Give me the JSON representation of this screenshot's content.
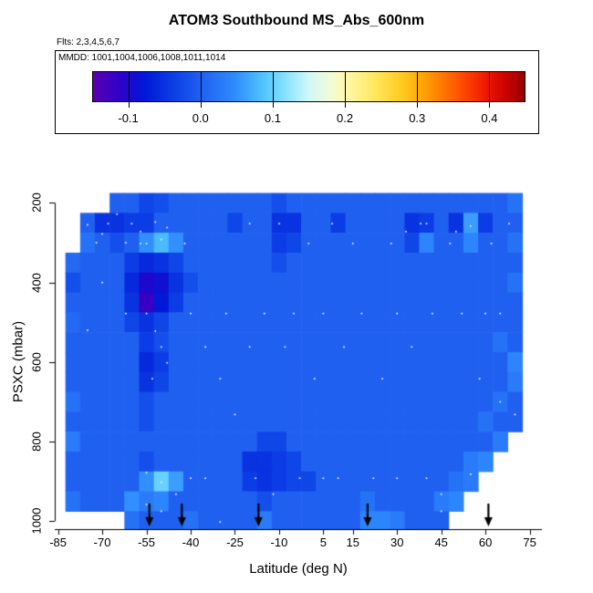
{
  "title": "ATOM3 Southbound MS_Abs_600nm",
  "subtitle_flights": "Flts: 2,3,4,5,6,7",
  "legend": {
    "mmdd_label": "MMDD: 1001,1004,1006,1008,1011,1014",
    "colorbar": {
      "min": -0.15,
      "max": 0.45,
      "tick_values": [
        -0.1,
        0.0,
        0.1,
        0.2,
        0.3,
        0.4
      ],
      "tick_labels": [
        "-0.1",
        "0.0",
        "0.1",
        "0.2",
        "0.3",
        "0.4"
      ],
      "stops": [
        [
          0.0,
          "#5a00b0"
        ],
        [
          0.06,
          "#3000c8"
        ],
        [
          0.12,
          "#0018d8"
        ],
        [
          0.2,
          "#0f46e8"
        ],
        [
          0.25,
          "#2060f0"
        ],
        [
          0.33,
          "#2f8cff"
        ],
        [
          0.4,
          "#55c8ff"
        ],
        [
          0.46,
          "#9ae8ff"
        ],
        [
          0.5,
          "#d0f8f8"
        ],
        [
          0.55,
          "#f0fcd8"
        ],
        [
          0.583,
          "#fff8b0"
        ],
        [
          0.65,
          "#ffe960"
        ],
        [
          0.72,
          "#ffc81e"
        ],
        [
          0.78,
          "#ff9600"
        ],
        [
          0.85,
          "#ff5000"
        ],
        [
          0.91,
          "#f01800"
        ],
        [
          0.96,
          "#c80000"
        ],
        [
          1.0,
          "#960000"
        ]
      ]
    }
  },
  "axes": {
    "x": {
      "label": "Latitude (deg N)",
      "tick_values": [
        -85,
        -70,
        -55,
        -40,
        -25,
        -10,
        5,
        15,
        30,
        45,
        60,
        75
      ],
      "tick_labels": [
        "-85",
        "-70",
        "-55",
        "-40",
        "-25",
        "-10",
        "5",
        "15",
        "30",
        "45",
        "60",
        "75"
      ]
    },
    "y": {
      "label": "PSXC (mbar)",
      "tick_values": [
        200,
        400,
        600,
        800,
        1000
      ],
      "tick_labels": [
        "200",
        "400",
        "600",
        "800",
        "1000"
      ]
    }
  },
  "colors": {
    "background": "#ffffff",
    "axis": "#000000",
    "arrow": "#000000",
    "track_dot": "#ffffff"
  },
  "chart_data": {
    "type": "heatmap",
    "title": "ATOM3 Southbound MS_Abs_600nm",
    "xlabel": "Latitude (deg N)",
    "ylabel": "PSXC (mbar)",
    "x_range": [
      -85,
      80
    ],
    "y_range": [
      1000,
      200
    ],
    "value_range": [
      -0.15,
      0.45
    ],
    "lat_centers": [
      -80,
      -75,
      -70,
      -65,
      -60,
      -55,
      -50,
      -45,
      -40,
      -35,
      -30,
      -25,
      -20,
      -15,
      -10,
      -5,
      0,
      5,
      10,
      15,
      20,
      25,
      30,
      35,
      40,
      45,
      50,
      55,
      60,
      65,
      70,
      75
    ],
    "pressure_centers": [
      200,
      250,
      300,
      350,
      400,
      450,
      500,
      550,
      600,
      650,
      700,
      750,
      800,
      850,
      900,
      950,
      1000
    ],
    "values": [
      [
        null,
        null,
        null,
        0,
        0,
        -0.03,
        -0.02,
        0,
        0,
        0,
        0,
        0,
        0,
        0,
        -0.02,
        0,
        0,
        0,
        0,
        0,
        0,
        0,
        0,
        0,
        0,
        0,
        0,
        0,
        0,
        0,
        0.02,
        null
      ],
      [
        null,
        0,
        -0.05,
        -0.05,
        -0.04,
        -0.04,
        0,
        0,
        0,
        0,
        0,
        -0.03,
        0,
        0,
        -0.05,
        -0.05,
        0,
        0,
        -0.04,
        0,
        0,
        0,
        0,
        -0.05,
        -0.04,
        0,
        -0.05,
        0.06,
        -0.04,
        0,
        0,
        null
      ],
      [
        null,
        0.02,
        0,
        -0.02,
        0,
        0.05,
        0.08,
        0.05,
        0,
        0,
        0,
        0,
        0,
        0,
        -0.04,
        -0.03,
        0,
        0,
        0,
        0,
        0,
        0,
        0,
        -0.03,
        0.04,
        0,
        0,
        0.04,
        0,
        0,
        0.02,
        null
      ],
      [
        0.01,
        0,
        0,
        0,
        -0.04,
        -0.06,
        -0.05,
        -0.03,
        0,
        0,
        0,
        0,
        0,
        0,
        -0.02,
        0,
        0,
        0,
        0,
        0,
        0,
        0,
        0,
        0,
        0,
        0,
        0,
        0,
        0,
        0,
        0,
        null
      ],
      [
        -0.02,
        0,
        0,
        0,
        -0.06,
        -0.1,
        -0.09,
        -0.05,
        -0.02,
        0,
        0,
        0,
        0,
        0,
        0,
        0,
        0,
        0,
        0,
        0,
        0,
        0,
        0,
        0,
        0,
        0,
        0,
        0,
        0,
        0,
        0.02,
        null
      ],
      [
        0,
        0,
        0,
        0,
        -0.05,
        -0.12,
        -0.08,
        -0.04,
        0,
        0,
        0,
        0,
        0,
        0,
        0,
        0,
        0,
        0,
        0,
        0,
        0,
        0,
        0,
        0,
        0,
        0,
        0,
        0,
        0,
        0,
        0,
        null
      ],
      [
        0.01,
        0,
        0,
        0,
        -0.03,
        -0.05,
        -0.03,
        0,
        0,
        0,
        0,
        0,
        0,
        0,
        0,
        0,
        0,
        0,
        0,
        0,
        0,
        0,
        0,
        0,
        0,
        0,
        0,
        0,
        0,
        0,
        0,
        null
      ],
      [
        0,
        0,
        0,
        0,
        0,
        -0.04,
        -0.02,
        0,
        0,
        0,
        0,
        0,
        0,
        0,
        0,
        0,
        0,
        0,
        0,
        0,
        0,
        0,
        0,
        0,
        0,
        0,
        0,
        0,
        0,
        0.02,
        0,
        null
      ],
      [
        0,
        0,
        0,
        0,
        0,
        -0.06,
        -0.04,
        0,
        0,
        0,
        0,
        0,
        0,
        0,
        0,
        0,
        0,
        0,
        0,
        0,
        0,
        0,
        0,
        0,
        0,
        0,
        0,
        0,
        0,
        0,
        0.04,
        null
      ],
      [
        0,
        0,
        0,
        0,
        0,
        -0.05,
        -0.03,
        0,
        0,
        0,
        0,
        0,
        0,
        0,
        0,
        0,
        0,
        0,
        0,
        0,
        0,
        0,
        0,
        0,
        0,
        0,
        0,
        0,
        0,
        0,
        0.03,
        null
      ],
      [
        0.02,
        0,
        0,
        0,
        0,
        -0.02,
        0,
        0,
        0,
        0,
        0,
        0,
        0,
        0,
        0,
        0,
        0,
        0,
        0,
        0,
        0,
        0,
        0,
        0,
        0,
        0,
        0,
        0,
        0,
        0.02,
        0,
        null
      ],
      [
        0,
        0,
        0,
        0,
        0,
        -0.02,
        0,
        0,
        0,
        0,
        0,
        0,
        0,
        0,
        0,
        0,
        0,
        0,
        0,
        0,
        0,
        0,
        0,
        0,
        0,
        0,
        0,
        0,
        0.02,
        0,
        0,
        null
      ],
      [
        0.03,
        0,
        0,
        0,
        0,
        0,
        0,
        0,
        0,
        0,
        0,
        0,
        0,
        -0.03,
        -0.03,
        0,
        0,
        0,
        0,
        0,
        0,
        0,
        0,
        0,
        0,
        0,
        0,
        0,
        0,
        0.03,
        null,
        null
      ],
      [
        0,
        0,
        0,
        0,
        0,
        -0.02,
        0,
        0,
        0,
        0,
        0,
        0,
        -0.05,
        -0.05,
        -0.04,
        -0.03,
        0,
        0,
        0,
        0,
        0,
        0,
        0,
        0,
        0,
        0,
        0,
        0.03,
        0.04,
        null,
        null,
        null
      ],
      [
        0,
        0,
        0,
        0,
        0,
        0.05,
        0.1,
        0.06,
        0,
        0,
        0,
        0,
        -0.04,
        -0.05,
        -0.04,
        -0.03,
        -0.03,
        0,
        0,
        0,
        0,
        0,
        0,
        0,
        0,
        0,
        0.02,
        0.03,
        null,
        null,
        null,
        null
      ],
      [
        0.02,
        0,
        0,
        0,
        0.05,
        0.03,
        0.04,
        0,
        0,
        0,
        0,
        0,
        0,
        -0.02,
        0,
        0,
        0,
        0,
        0,
        0,
        0.02,
        0,
        0,
        0,
        0,
        0.03,
        0.04,
        null,
        null,
        null,
        null,
        null
      ],
      [
        null,
        null,
        null,
        null,
        0.02,
        0,
        0,
        0,
        0.02,
        0,
        0,
        0,
        0,
        0.03,
        0,
        0,
        0,
        0,
        0,
        0,
        0.04,
        0.04,
        0.03,
        0,
        0,
        0,
        null,
        null,
        null,
        null,
        null,
        null
      ]
    ],
    "arrows_lat": [
      -54,
      -43,
      -17,
      20,
      61
    ],
    "track_dots": [
      [
        -75,
        255
      ],
      [
        -72,
        300
      ],
      [
        -70,
        278
      ],
      [
        -68,
        252
      ],
      [
        -65,
        228
      ],
      [
        -62,
        300
      ],
      [
        -60,
        252
      ],
      [
        -57,
        272
      ],
      [
        -55,
        302
      ],
      [
        -52,
        248
      ],
      [
        -50,
        292
      ],
      [
        -48,
        262
      ],
      [
        -55,
        478
      ],
      [
        -52,
        522
      ],
      [
        -50,
        562
      ],
      [
        -53,
        642
      ],
      [
        -48,
        602
      ],
      [
        -55,
        878
      ],
      [
        -50,
        902
      ],
      [
        -45,
        932
      ],
      [
        -55,
        958
      ],
      [
        -50,
        975
      ],
      [
        -42,
        302
      ],
      [
        -40,
        478
      ],
      [
        -35,
        562
      ],
      [
        -30,
        642
      ],
      [
        -28,
        478
      ],
      [
        -25,
        732
      ],
      [
        -20,
        562
      ],
      [
        -18,
        892
      ],
      [
        -15,
        478
      ],
      [
        -12,
        932
      ],
      [
        -10,
        252
      ],
      [
        -8,
        562
      ],
      [
        -5,
        478
      ],
      [
        -3,
        892
      ],
      [
        0,
        302
      ],
      [
        2,
        642
      ],
      [
        5,
        478
      ],
      [
        8,
        252
      ],
      [
        10,
        892
      ],
      [
        12,
        562
      ],
      [
        15,
        302
      ],
      [
        18,
        478
      ],
      [
        20,
        958
      ],
      [
        22,
        892
      ],
      [
        25,
        642
      ],
      [
        28,
        302
      ],
      [
        30,
        478
      ],
      [
        33,
        272
      ],
      [
        35,
        562
      ],
      [
        38,
        252
      ],
      [
        40,
        892
      ],
      [
        42,
        478
      ],
      [
        45,
        932
      ],
      [
        48,
        302
      ],
      [
        50,
        272
      ],
      [
        52,
        478
      ],
      [
        55,
        258
      ],
      [
        58,
        642
      ],
      [
        55,
        882
      ],
      [
        62,
        302
      ],
      [
        65,
        478
      ],
      [
        68,
        252
      ],
      [
        70,
        732
      ],
      [
        45,
        975
      ],
      [
        20,
        1002
      ],
      [
        -30,
        1002
      ],
      [
        -57,
        302
      ],
      [
        -62,
        478
      ],
      [
        -70,
        400
      ],
      [
        -75,
        520
      ],
      [
        5,
        892
      ],
      [
        30,
        892
      ],
      [
        -35,
        892
      ],
      [
        60,
        478
      ],
      [
        65,
        700
      ],
      [
        40,
        252
      ],
      [
        -20,
        252
      ],
      [
        -40,
        892
      ]
    ]
  }
}
